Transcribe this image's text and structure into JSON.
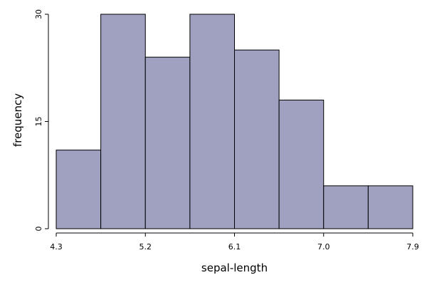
{
  "chart_data": {
    "type": "bar",
    "xlabel": "sepal-length",
    "ylabel": "frequency",
    "bin_edges": [
      4.3,
      4.75,
      5.2,
      5.65,
      6.1,
      6.55,
      7.0,
      7.45,
      7.9
    ],
    "values": [
      11,
      30,
      24,
      30,
      25,
      18,
      6,
      6
    ],
    "xticks": [
      "4.3",
      "5.2",
      "6.1",
      "7.0",
      "7.9"
    ],
    "yticks": [
      "0",
      "15",
      "30"
    ],
    "xlim": [
      4.3,
      7.9
    ],
    "ylim": [
      0,
      30
    ],
    "grid": false,
    "bar_color": "#a0a0c0"
  }
}
